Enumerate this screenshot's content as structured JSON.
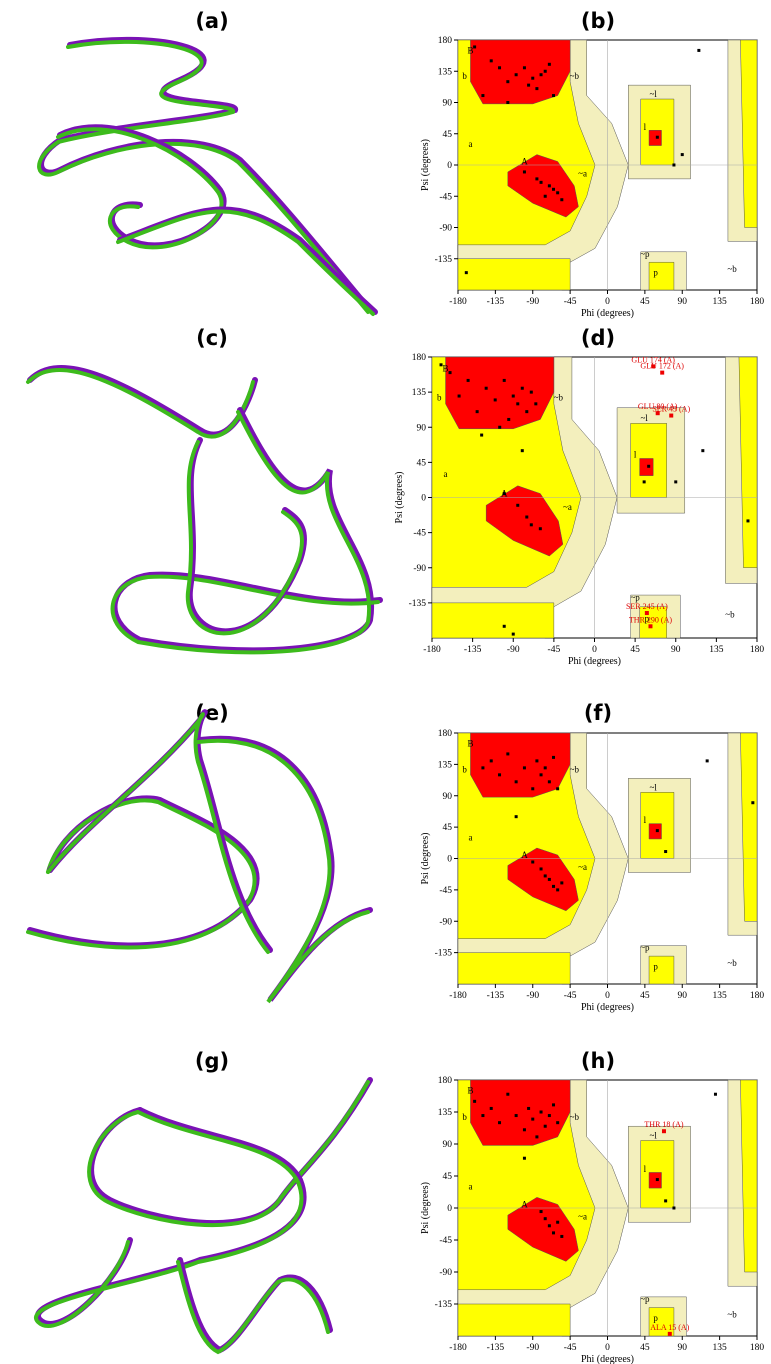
{
  "panel_labels": [
    "(a)",
    "(b)",
    "(c)",
    "(d)",
    "(e)",
    "(f)",
    "(g)",
    "(h)"
  ],
  "chart_data": [
    {
      "type": "scatter",
      "x_label": "Phi (degrees)",
      "y_label": "Psi (degrees)",
      "xlim": [
        -180,
        180
      ],
      "ylim": [
        -180,
        180
      ],
      "xticks": [
        -180,
        -135,
        -90,
        -45,
        0,
        45,
        90,
        135,
        180
      ],
      "yticks": [
        -135,
        -90,
        -45,
        0,
        45,
        90,
        135,
        180
      ],
      "region_labels": [
        "B",
        "b",
        "a",
        "A",
        "l",
        "~b",
        "~a",
        "~l",
        "~p",
        "p",
        "~b"
      ],
      "x": [
        -160,
        -150,
        -140,
        -130,
        -120,
        -110,
        -100,
        -95,
        -90,
        -85,
        -80,
        -75,
        -70,
        -65,
        -120,
        -100,
        -85,
        -70,
        -60,
        -55,
        -65,
        -75,
        -80,
        60,
        80,
        90,
        110,
        -170
      ],
      "y": [
        170,
        100,
        150,
        140,
        120,
        130,
        140,
        115,
        125,
        110,
        130,
        135,
        145,
        100,
        90,
        -10,
        -20,
        -30,
        -40,
        -50,
        -35,
        -45,
        -25,
        40,
        0,
        15,
        165,
        -155
      ],
      "annotations": []
    },
    {
      "type": "scatter",
      "x_label": "Phi (degrees)",
      "y_label": "Psi (degrees)",
      "xlim": [
        -180,
        180
      ],
      "ylim": [
        -180,
        180
      ],
      "xticks": [
        -180,
        -135,
        -90,
        -45,
        0,
        45,
        90,
        135,
        180
      ],
      "yticks": [
        -135,
        -90,
        -45,
        0,
        45,
        90,
        135,
        180
      ],
      "region_labels": [
        "B",
        "b",
        "a",
        "A",
        "l",
        "~b",
        "~a",
        "~l",
        "~p",
        "p",
        "~b"
      ],
      "x": [
        -170,
        -160,
        -150,
        -140,
        -130,
        -120,
        -110,
        -100,
        -95,
        -90,
        -85,
        -80,
        -75,
        -70,
        -65,
        -125,
        -105,
        -80,
        -100,
        -85,
        -75,
        -70,
        -60,
        60,
        55,
        90,
        120,
        170,
        -90,
        -100
      ],
      "y": [
        170,
        160,
        130,
        150,
        110,
        140,
        125,
        150,
        100,
        130,
        120,
        140,
        110,
        135,
        120,
        80,
        90,
        60,
        5,
        -10,
        -25,
        -35,
        -40,
        40,
        20,
        20,
        60,
        -30,
        -175,
        -165
      ],
      "annotations": [
        {
          "label": "GLU 174 (A)",
          "x": 65,
          "y": 168
        },
        {
          "label": "GLU 172 (A)",
          "x": 75,
          "y": 160
        },
        {
          "label": "GLU 80 (A)",
          "x": 70,
          "y": 108
        },
        {
          "label": "SER 43 (A)",
          "x": 85,
          "y": 105
        },
        {
          "label": "SER 245 (A)",
          "x": 58,
          "y": -148
        },
        {
          "label": "THR 290 (A)",
          "x": 62,
          "y": -165
        }
      ]
    },
    {
      "type": "scatter",
      "x_label": "Phi (degrees)",
      "y_label": "Psi (degrees)",
      "xlim": [
        -180,
        180
      ],
      "ylim": [
        -180,
        180
      ],
      "xticks": [
        -180,
        -135,
        -90,
        -45,
        0,
        45,
        90,
        135,
        180
      ],
      "yticks": [
        -135,
        -90,
        -45,
        0,
        45,
        90,
        135,
        180
      ],
      "region_labels": [
        "B",
        "b",
        "a",
        "A",
        "l",
        "~b",
        "~a",
        "~l",
        "~p",
        "p",
        "~b"
      ],
      "x": [
        -150,
        -140,
        -130,
        -120,
        -110,
        -100,
        -90,
        -85,
        -80,
        -75,
        -70,
        -65,
        -60,
        -110,
        -90,
        -80,
        -75,
        -70,
        -65,
        -60,
        -55,
        60,
        70,
        120,
        175
      ],
      "y": [
        130,
        140,
        120,
        150,
        110,
        130,
        100,
        140,
        120,
        130,
        110,
        145,
        100,
        60,
        -5,
        -15,
        -25,
        -30,
        -40,
        -45,
        -35,
        40,
        10,
        140,
        80
      ],
      "annotations": []
    },
    {
      "type": "scatter",
      "x_label": "Phi (degrees)",
      "y_label": "Psi (degrees)",
      "xlim": [
        -180,
        180
      ],
      "ylim": [
        -180,
        180
      ],
      "xticks": [
        -180,
        -135,
        -90,
        -45,
        0,
        45,
        90,
        135,
        180
      ],
      "yticks": [
        -135,
        -90,
        -45,
        0,
        45,
        90,
        135,
        180
      ],
      "region_labels": [
        "B",
        "b",
        "a",
        "A",
        "l",
        "~b",
        "~a",
        "~l",
        "~p",
        "p",
        "~b"
      ],
      "x": [
        -160,
        -150,
        -140,
        -130,
        -120,
        -110,
        -100,
        -95,
        -90,
        -85,
        -80,
        -75,
        -70,
        -65,
        -60,
        -100,
        -80,
        -75,
        -70,
        -65,
        -60,
        -55,
        60,
        70,
        80,
        130
      ],
      "y": [
        150,
        130,
        140,
        120,
        160,
        130,
        110,
        140,
        125,
        100,
        135,
        115,
        130,
        145,
        120,
        70,
        -5,
        -15,
        -25,
        -35,
        -20,
        -40,
        40,
        10,
        0,
        160
      ],
      "annotations": [
        {
          "label": "THR 18 (A)",
          "x": 68,
          "y": 108
        },
        {
          "label": "ALA 15 (A)",
          "x": 75,
          "y": -177
        }
      ]
    }
  ]
}
